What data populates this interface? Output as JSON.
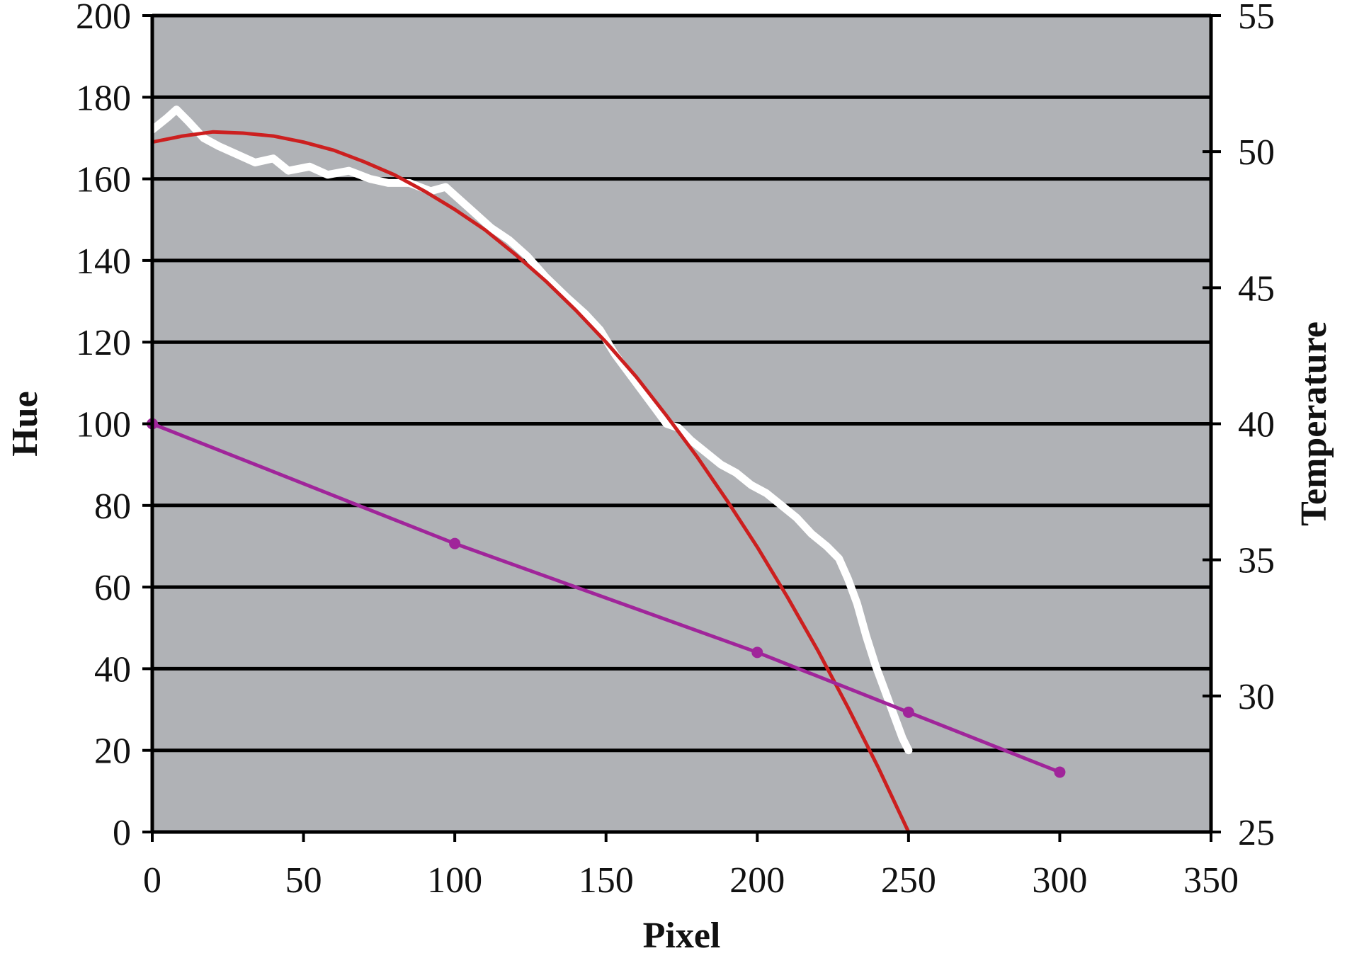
{
  "chart_data": {
    "type": "line",
    "title": "",
    "xlabel": "Pixel",
    "ylabel": "Hue",
    "y2label": "Temperature",
    "xlim": [
      0,
      350
    ],
    "ylim": [
      0,
      200
    ],
    "y2lim": [
      25,
      55
    ],
    "x_ticks": [
      0,
      50,
      100,
      150,
      200,
      250,
      300,
      350
    ],
    "y_ticks": [
      0,
      20,
      40,
      60,
      80,
      100,
      120,
      140,
      160,
      180,
      200
    ],
    "y2_ticks": [
      25,
      30,
      35,
      40,
      45,
      50,
      55
    ],
    "x_tick_labels": [
      "0",
      "50",
      "100",
      "150",
      "200",
      "250",
      "300",
      "350"
    ],
    "y_tick_labels": [
      "0",
      "20",
      "40",
      "60",
      "80",
      "100",
      "120",
      "140",
      "160",
      "180",
      "200"
    ],
    "y2_tick_labels": [
      "25",
      "30",
      "35",
      "40",
      "45",
      "50",
      "55"
    ],
    "grid": true,
    "grid_axis": "y",
    "legend": "none",
    "colors": {
      "plot_background": "#b0b2b6",
      "gridlines": "#000000",
      "measured_hue": "#ffffff",
      "fitted_hue": "#cc1f1f",
      "temperature": "#a0259a"
    },
    "series": [
      {
        "axis": "left",
        "style": "noisy-line",
        "color": "#ffffff",
        "x": [
          0,
          5,
          8,
          12,
          17,
          22,
          28,
          34,
          40,
          45,
          52,
          58,
          65,
          72,
          78,
          85,
          92,
          97,
          100,
          106,
          112,
          118,
          124,
          130,
          137,
          143,
          148,
          153,
          158,
          162,
          166,
          170,
          174,
          178,
          183,
          188,
          193,
          198,
          203,
          208,
          213,
          218,
          223,
          227,
          230,
          233,
          236,
          239,
          242,
          245,
          248,
          250
        ],
        "y": [
          172,
          175,
          177,
          174,
          170,
          168,
          166,
          164,
          165,
          162,
          163,
          161,
          162,
          160,
          159,
          159,
          157,
          158,
          156,
          152,
          148,
          145,
          141,
          136,
          131,
          127,
          123,
          117,
          112,
          108,
          104,
          100,
          99,
          96,
          93,
          90,
          88,
          85,
          83,
          80,
          77,
          73,
          70,
          67,
          62,
          56,
          48,
          41,
          35,
          29,
          23,
          20
        ]
      },
      {
        "axis": "left",
        "style": "smooth-line",
        "color": "#cc1f1f",
        "x": [
          0,
          10,
          20,
          30,
          40,
          50,
          60,
          70,
          80,
          90,
          100,
          110,
          120,
          130,
          140,
          150,
          160,
          170,
          180,
          190,
          200,
          210,
          220,
          230,
          240,
          250
        ],
        "y": [
          169,
          170.5,
          171.5,
          171.2,
          170.5,
          169,
          167,
          164.2,
          161,
          157,
          152.5,
          147.5,
          141.5,
          135,
          127.8,
          120,
          111.5,
          102,
          92,
          81.2,
          69.8,
          57.5,
          44.5,
          30.5,
          15.8,
          0
        ]
      },
      {
        "axis": "right",
        "style": "line-markers",
        "color": "#a0259a",
        "x": [
          0,
          100,
          200,
          250,
          300
        ],
        "y": [
          40,
          35.6,
          31.6,
          29.4,
          27.2
        ]
      }
    ]
  }
}
